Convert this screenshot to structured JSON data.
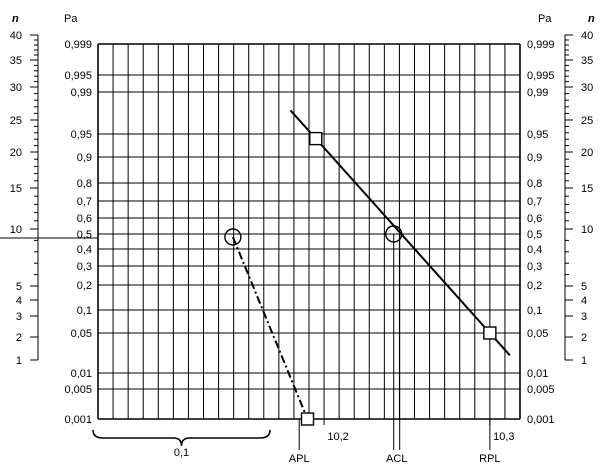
{
  "chart_data": {
    "type": "scatter",
    "y_scale": "probability",
    "y_axis_unit_left": "Pa",
    "y_axis_unit_right": "Pa",
    "n_axis_label_left": "n",
    "n_axis_label_right": "n",
    "pa_ticks": [
      "0,999",
      "0,995",
      "0,99",
      "0,95",
      "0,9",
      "0,8",
      "0,7",
      "0,6",
      "0,5",
      "0,4",
      "0,3",
      "0,2",
      "0,1",
      "0,05",
      "0,01",
      "0,005",
      "0,001"
    ],
    "n_ticks": [
      "40",
      "35",
      "30",
      "25",
      "20",
      "15",
      "10",
      "5",
      "4",
      "3",
      "2",
      "1"
    ],
    "x_tick_labels": [
      "10,2",
      "10,3"
    ],
    "x_markers": [
      "APL",
      "ACL",
      "RPL"
    ],
    "bracket_label": "0,1",
    "series": [
      {
        "style": "dash-dot",
        "points": [
          {
            "x": 10.145,
            "pa": 0.48,
            "marker": "circle"
          },
          {
            "x": 10.19,
            "pa": 0.001,
            "marker": "square"
          }
        ]
      },
      {
        "style": "solid",
        "points": [
          {
            "x": 10.195,
            "pa": 0.94,
            "marker": "square"
          },
          {
            "x": 10.242,
            "pa": 0.5,
            "marker": "circle"
          },
          {
            "x": 10.3,
            "pa": 0.05,
            "marker": "square"
          }
        ]
      }
    ]
  }
}
